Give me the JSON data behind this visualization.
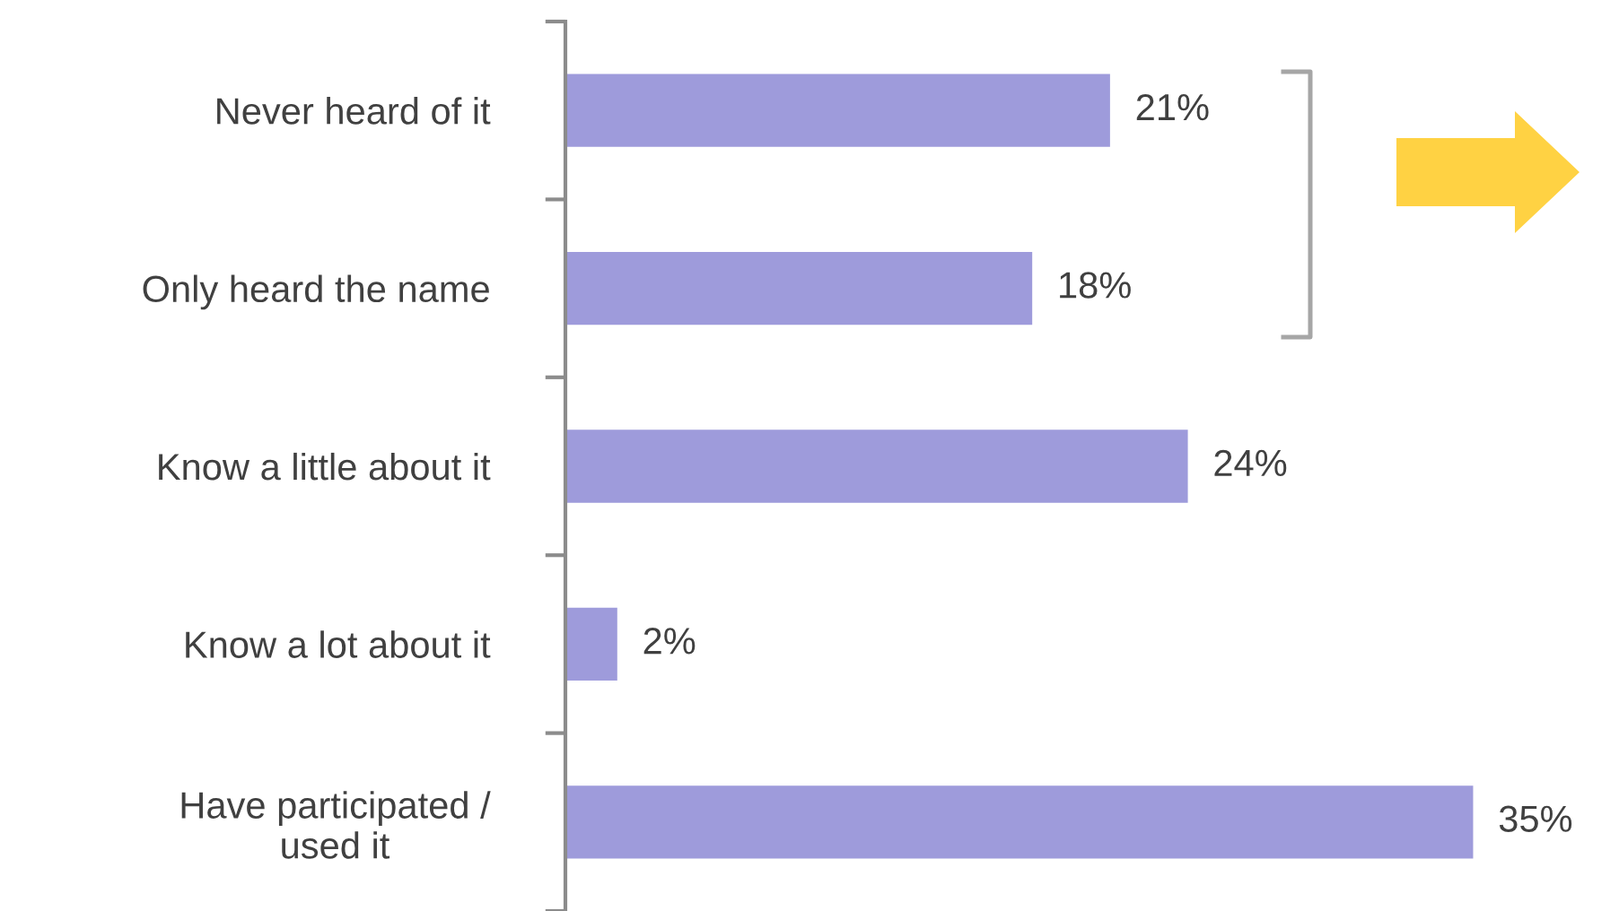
{
  "chart_data": {
    "type": "bar",
    "orientation": "horizontal",
    "categories": [
      "Never heard of it",
      "Only heard the name",
      "Know a little about it",
      "Know a lot about it",
      "Have participated /\nused it"
    ],
    "values": [
      21,
      18,
      24,
      2,
      35
    ],
    "value_labels": [
      "21%",
      "18%",
      "24%",
      "2%",
      "35%"
    ],
    "color": "#9e9bdb",
    "grid": false,
    "legend": false
  }
}
